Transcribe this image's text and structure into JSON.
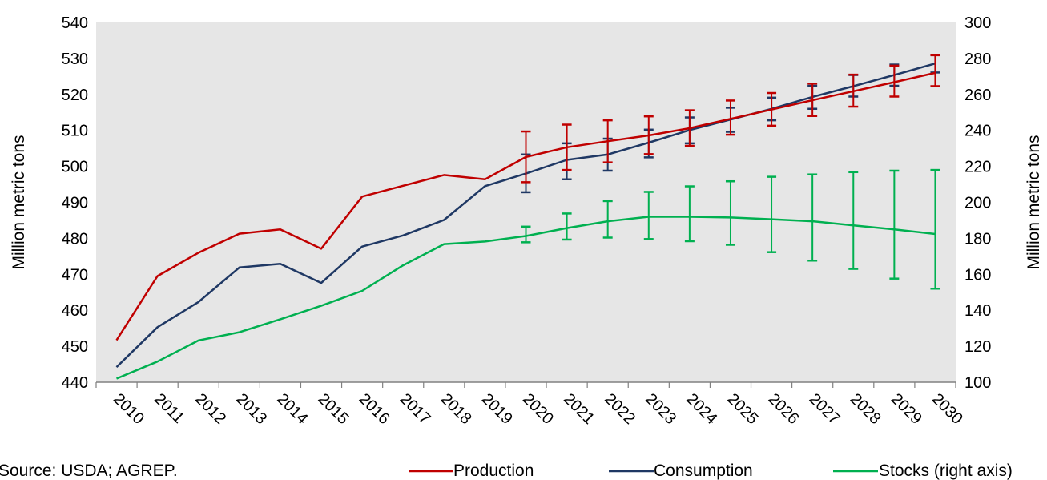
{
  "chart_data": {
    "type": "line",
    "title": "",
    "source": "Source: USDA; AGREP.",
    "ylabel": "Million metric tons",
    "y2label": "Million metric tons",
    "ylim": [
      440,
      540
    ],
    "y2lim": [
      100,
      300
    ],
    "yticks": [
      440,
      450,
      460,
      470,
      480,
      490,
      500,
      510,
      520,
      530,
      540
    ],
    "y2ticks": [
      100,
      120,
      140,
      160,
      180,
      200,
      220,
      240,
      260,
      280,
      300
    ],
    "x": [
      "2010",
      "2011",
      "2012",
      "2013",
      "2014",
      "2015",
      "2016",
      "2017",
      "2018",
      "2019",
      "2020",
      "2021",
      "2022",
      "2023",
      "2024",
      "2025",
      "2026",
      "2027",
      "2028",
      "2029",
      "2030"
    ],
    "grid": false,
    "background": "#e6e6e6",
    "legend_position": "bottom",
    "series": [
      {
        "name": "Production",
        "axis": "left",
        "color": "#c00000",
        "values": [
          451.7,
          469.5,
          476.0,
          481.3,
          482.5,
          477.1,
          491.6,
          494.6,
          497.6,
          496.4,
          502.6,
          505.3,
          507.0,
          508.6,
          510.6,
          513.2,
          515.8,
          518.4,
          520.9,
          523.4,
          526.0
        ],
        "error_high": [
          null,
          null,
          null,
          null,
          null,
          null,
          null,
          null,
          null,
          null,
          509.7,
          511.6,
          512.8,
          513.9,
          515.6,
          518.3,
          520.4,
          523.0,
          525.5,
          528.0,
          530.9
        ],
        "error_low": [
          null,
          null,
          null,
          null,
          null,
          null,
          null,
          null,
          null,
          null,
          495.6,
          499.0,
          501.1,
          503.4,
          505.7,
          508.8,
          511.3,
          514.0,
          516.6,
          519.4,
          522.3
        ]
      },
      {
        "name": "Consumption",
        "axis": "left",
        "color": "#1f3864",
        "values": [
          444.2,
          455.3,
          462.3,
          471.9,
          472.9,
          467.6,
          477.7,
          480.8,
          485.1,
          494.5,
          498.0,
          501.8,
          503.3,
          506.6,
          510.1,
          513.0,
          516.0,
          519.3,
          522.3,
          525.4,
          528.6
        ],
        "error_high": [
          null,
          null,
          null,
          null,
          null,
          null,
          null,
          null,
          null,
          null,
          503.3,
          506.4,
          507.7,
          510.2,
          513.6,
          516.3,
          519.1,
          522.4,
          525.4,
          528.3,
          531.0
        ],
        "error_low": [
          null,
          null,
          null,
          null,
          null,
          null,
          null,
          null,
          null,
          null,
          492.8,
          496.4,
          498.8,
          502.5,
          506.4,
          509.6,
          512.8,
          516.0,
          519.4,
          522.4,
          526.1
        ]
      },
      {
        "name": "Stocks (right axis)",
        "axis": "right",
        "color": "#00b050",
        "values": [
          102.0,
          111.5,
          123.2,
          127.8,
          135.0,
          142.5,
          150.8,
          165.0,
          176.8,
          178.2,
          181.3,
          185.7,
          189.5,
          192.0,
          192.0,
          191.6,
          190.6,
          189.5,
          187.2,
          185.0,
          182.4
        ],
        "error_high": [
          null,
          null,
          null,
          null,
          null,
          null,
          null,
          null,
          null,
          null,
          186.5,
          193.8,
          200.7,
          205.8,
          208.9,
          211.7,
          214.2,
          215.5,
          216.8,
          217.6,
          218.0
        ],
        "error_low": [
          null,
          null,
          null,
          null,
          null,
          null,
          null,
          null,
          null,
          null,
          177.8,
          179.3,
          180.4,
          179.6,
          178.4,
          176.4,
          172.3,
          167.6,
          163.0,
          157.6,
          152.0
        ]
      }
    ]
  }
}
